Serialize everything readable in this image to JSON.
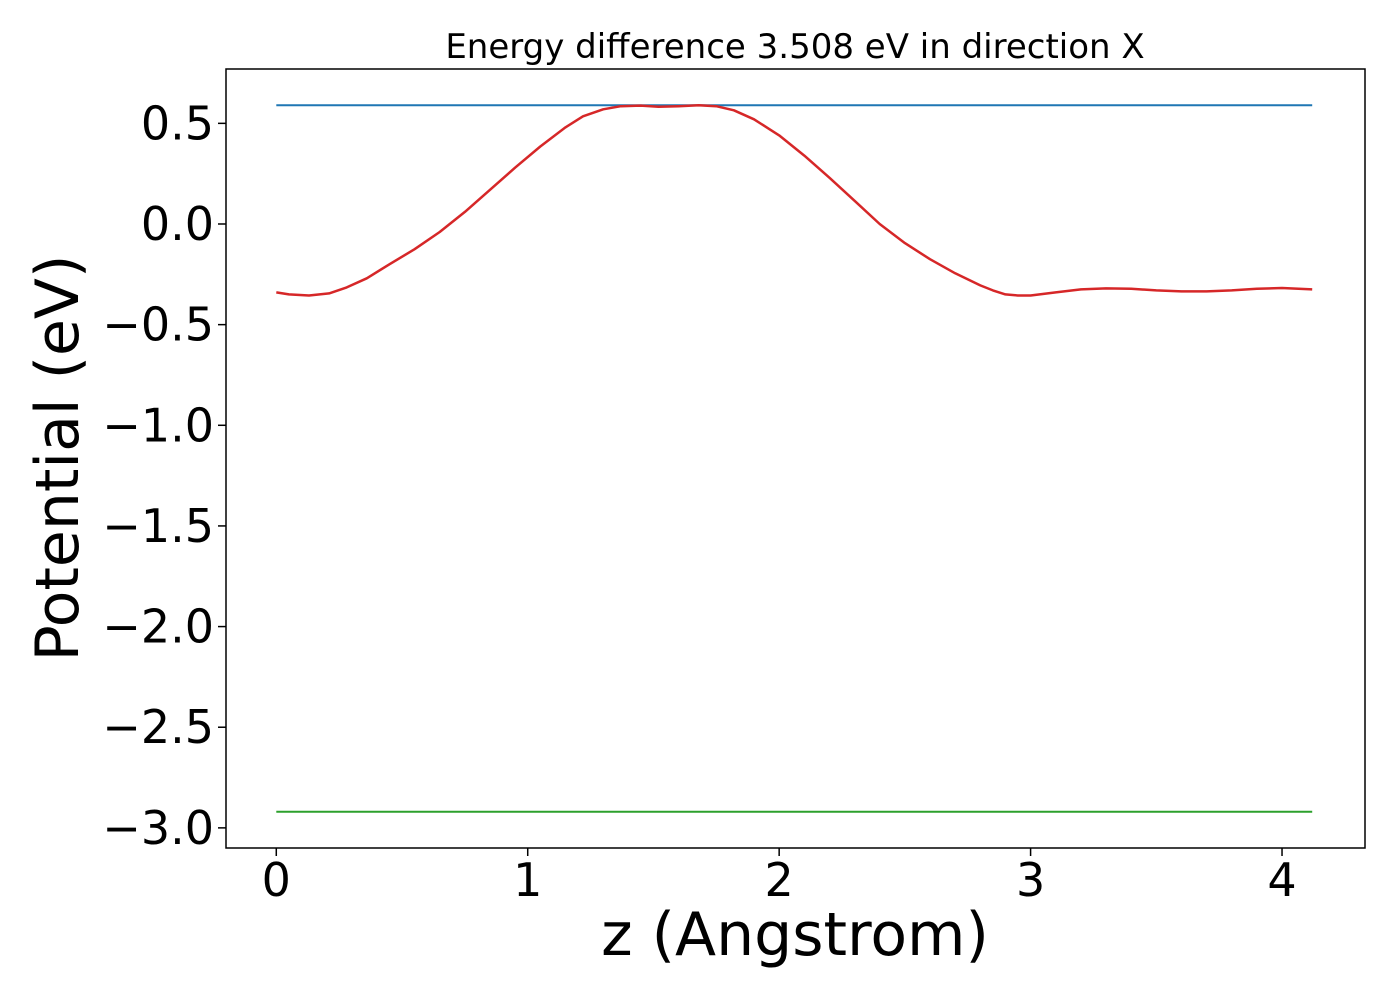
{
  "chart_data": {
    "type": "line",
    "title": "Energy difference 3.508 eV in direction X",
    "xlabel": "z (Angstrom)",
    "ylabel": "Potential (eV)",
    "xlim": [
      -0.2,
      4.33
    ],
    "ylim": [
      -3.1,
      0.77
    ],
    "xticks": [
      0,
      1,
      2,
      3,
      4
    ],
    "yticks": [
      0.5,
      0.0,
      -0.5,
      -1.0,
      -1.5,
      -2.0,
      -2.5,
      -3.0
    ],
    "xtick_labels": [
      "0",
      "1",
      "2",
      "3",
      "4"
    ],
    "ytick_labels": [
      "0.5",
      "0.0",
      "−0.5",
      "−1.0",
      "−1.5",
      "−2.0",
      "−2.5",
      "−3.0"
    ],
    "grid": false,
    "legend": "none",
    "series": [
      {
        "color": "#1f77b4",
        "x": [
          0,
          4.12
        ],
        "y": [
          0.59,
          0.59
        ]
      },
      {
        "color": "#2ca02c",
        "x": [
          0,
          4.12
        ],
        "y": [
          -2.92,
          -2.92
        ]
      },
      {
        "color": "#d62728",
        "x": [
          0.0,
          0.05,
          0.13,
          0.21,
          0.28,
          0.36,
          0.45,
          0.55,
          0.65,
          0.75,
          0.85,
          0.95,
          1.05,
          1.15,
          1.22,
          1.3,
          1.37,
          1.45,
          1.52,
          1.6,
          1.68,
          1.75,
          1.82,
          1.9,
          2.0,
          2.1,
          2.2,
          2.3,
          2.4,
          2.5,
          2.6,
          2.7,
          2.8,
          2.85,
          2.9,
          2.95,
          3.0,
          3.1,
          3.2,
          3.3,
          3.4,
          3.5,
          3.6,
          3.7,
          3.8,
          3.9,
          4.0,
          4.12
        ],
        "y": [
          -0.34,
          -0.35,
          -0.355,
          -0.345,
          -0.315,
          -0.27,
          -0.2,
          -0.125,
          -0.04,
          0.06,
          0.17,
          0.28,
          0.385,
          0.48,
          0.535,
          0.57,
          0.585,
          0.588,
          0.582,
          0.585,
          0.59,
          0.585,
          0.565,
          0.52,
          0.44,
          0.34,
          0.23,
          0.115,
          0.0,
          -0.095,
          -0.175,
          -0.245,
          -0.305,
          -0.33,
          -0.35,
          -0.355,
          -0.355,
          -0.34,
          -0.325,
          -0.32,
          -0.322,
          -0.33,
          -0.335,
          -0.335,
          -0.33,
          -0.322,
          -0.318,
          -0.325
        ]
      }
    ]
  }
}
